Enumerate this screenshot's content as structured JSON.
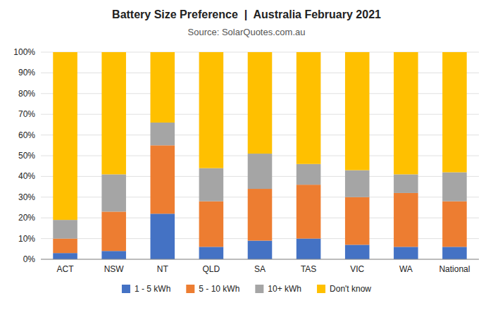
{
  "chart_data": {
    "type": "bar",
    "stacked": true,
    "title": "Battery Size Preference  |  Australia February 2021",
    "subtitle": "Source: SolarQuotes.com.au",
    "categories": [
      "ACT",
      "NSW",
      "NT",
      "QLD",
      "SA",
      "TAS",
      "VIC",
      "WA",
      "National"
    ],
    "series": [
      {
        "name": "1 - 5 kWh",
        "color": "#4472C4",
        "values": [
          3,
          4,
          22,
          6,
          9,
          10,
          7,
          6,
          6
        ]
      },
      {
        "name": "5 - 10 kWh",
        "color": "#ED7D31",
        "values": [
          7,
          19,
          33,
          22,
          25,
          26,
          23,
          26,
          22
        ]
      },
      {
        "name": "10+ kWh",
        "color": "#A5A5A5",
        "values": [
          9,
          18,
          11,
          16,
          17,
          10,
          13,
          9,
          14
        ]
      },
      {
        "name": "Don't know",
        "color": "#FFC000",
        "values": [
          81,
          59,
          34,
          56,
          49,
          54,
          57,
          59,
          58
        ]
      }
    ],
    "ylim": [
      0,
      100
    ],
    "yticks": [
      {
        "value": 0,
        "label": "0%"
      },
      {
        "value": 10,
        "label": "10%"
      },
      {
        "value": 20,
        "label": "20%"
      },
      {
        "value": 30,
        "label": "30%"
      },
      {
        "value": 40,
        "label": "40%"
      },
      {
        "value": 50,
        "label": "50%"
      },
      {
        "value": 60,
        "label": "60%"
      },
      {
        "value": 70,
        "label": "70%"
      },
      {
        "value": 80,
        "label": "80%"
      },
      {
        "value": 90,
        "label": "90%"
      },
      {
        "value": 100,
        "label": "100%"
      }
    ],
    "grid": true,
    "legend": "bottom"
  }
}
